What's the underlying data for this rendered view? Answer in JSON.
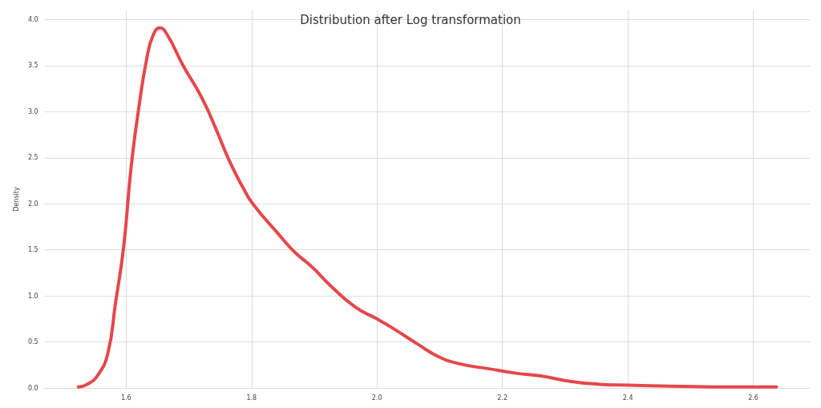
{
  "chart_data": {
    "type": "line",
    "title": "Distribution after Log transformation",
    "ylabel": "Density",
    "xlim": [
      1.47,
      2.69
    ],
    "xticks": [
      1.6,
      1.8,
      {
        "value": 2,
        "label": "2.0"
      },
      2.2,
      2.4,
      2.6
    ],
    "ylim": [
      0,
      4.1
    ],
    "yticks": [
      {
        "value": 0,
        "label": "0.0"
      },
      0.5,
      {
        "value": 1,
        "label": "1.0"
      },
      1.5,
      {
        "value": 2,
        "label": "2.0"
      },
      2.5,
      {
        "value": 3,
        "label": "3.0"
      },
      3.5,
      {
        "value": 4,
        "label": "4.0"
      }
    ],
    "grid": true,
    "marker": "none",
    "line_style": "solid",
    "series": [
      {
        "color": "#e5484b",
        "x": [
          1.524,
          1.538,
          1.555,
          1.571,
          1.583,
          1.596,
          1.608,
          1.621,
          1.633,
          1.643,
          1.654,
          1.666,
          1.691,
          1.72,
          1.744,
          1.765,
          1.786,
          1.802,
          1.843,
          1.868,
          1.897,
          1.926,
          1.965,
          2.0,
          2.025,
          2.064,
          2.098,
          2.133,
          2.177,
          2.222,
          2.261,
          2.31,
          2.355,
          2.401,
          2.468,
          2.566,
          2.637
        ],
        "values": [
          0.01,
          0.04,
          0.14,
          0.38,
          0.92,
          1.53,
          2.4,
          3.08,
          3.58,
          3.83,
          3.91,
          3.83,
          3.5,
          3.16,
          2.8,
          2.46,
          2.18,
          2.0,
          1.67,
          1.48,
          1.31,
          1.11,
          0.88,
          0.75,
          0.65,
          0.48,
          0.34,
          0.26,
          0.21,
          0.16,
          0.13,
          0.07,
          0.04,
          0.03,
          0.02,
          0.01,
          0.01
        ]
      }
    ]
  }
}
